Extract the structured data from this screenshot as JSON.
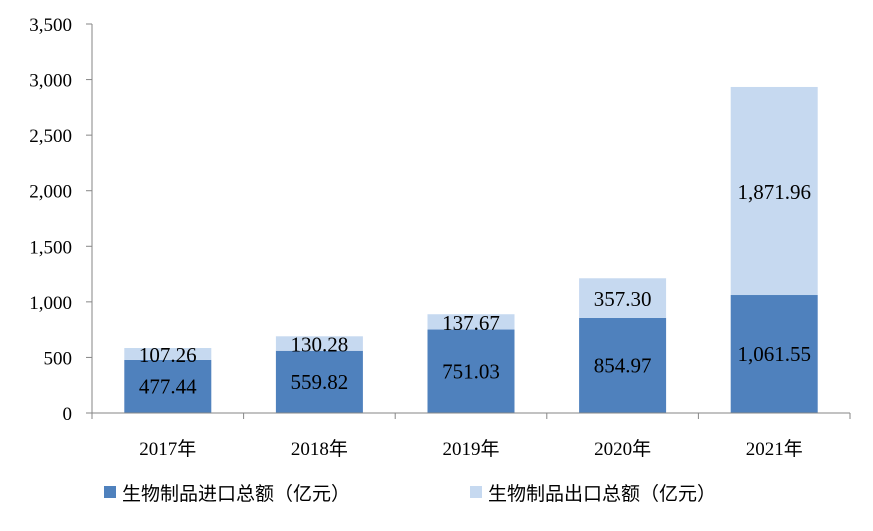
{
  "chart_data": {
    "type": "bar",
    "stacked": true,
    "categories": [
      "2017年",
      "2018年",
      "2019年",
      "2020年",
      "2021年"
    ],
    "series": [
      {
        "name": "生物制品进口总额（亿元）",
        "values": [
          477.44,
          559.82,
          751.03,
          854.97,
          1061.55
        ],
        "labels": [
          "477.44",
          "559.82",
          "751.03",
          "854.97",
          "1,061.55"
        ],
        "color": "#4f81bd"
      },
      {
        "name": "生物制品出口总额（亿元）",
        "values": [
          107.26,
          130.28,
          137.67,
          357.3,
          1871.96
        ],
        "labels": [
          "107.26",
          "130.28",
          "137.67",
          "357.30",
          "1,871.96"
        ],
        "color": "#c6d9f0"
      }
    ],
    "y_ticks": [
      "0",
      "500",
      "1,000",
      "1,500",
      "2,000",
      "2,500",
      "3,000",
      "3,500"
    ],
    "ylim": [
      0,
      3500
    ],
    "grid": false,
    "legend_position": "bottom"
  }
}
